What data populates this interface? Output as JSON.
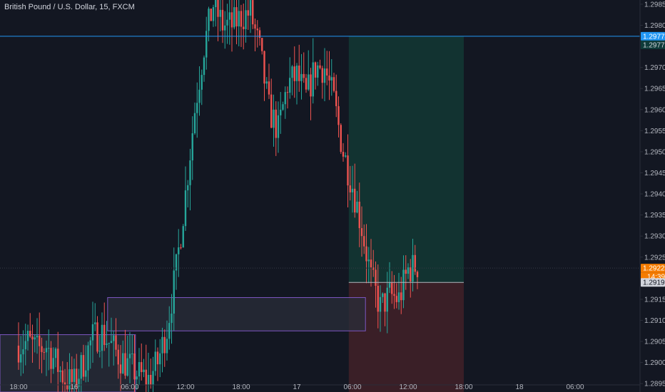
{
  "header": {
    "title": "British Pound / U.S. Dollar, 15, FXCM"
  },
  "colors": {
    "background": "#131722",
    "axis_text": "#b2b5be",
    "grid_border": "#2a2e39",
    "up_candle": "#26a69a",
    "down_candle": "#ef5350",
    "zone_fill": "#2a2d3a",
    "zone_stroke": "#7e57c2",
    "target_zone": "#123331",
    "stop_zone": "#3a1f27",
    "hline": "#2196f3",
    "current_price": "#f57c00",
    "entry_price": "#b2b5be"
  },
  "chart_data": {
    "type": "candlestick",
    "title": "British Pound / U.S. Dollar, 15, FXCM",
    "ylim": [
      1.2893,
      1.2986
    ],
    "y_ticks": [
      "1.29850",
      "1.29800",
      "1.29700",
      "1.29650",
      "1.29600",
      "1.29550",
      "1.29500",
      "1.29450",
      "1.29400",
      "1.29350",
      "1.29300",
      "1.29250",
      "1.29150",
      "1.29100",
      "1.29050",
      "1.29000",
      "1.28950"
    ],
    "x_ticks": [
      "18:00",
      "16",
      "06:00",
      "12:00",
      "18:00",
      "17",
      "06:00",
      "12:00",
      "18:00",
      "18",
      "06:00"
    ],
    "x_tick_positions": [
      0,
      6,
      12,
      18,
      24,
      30,
      36,
      42,
      48,
      54,
      60
    ],
    "xlim": [
      -2,
      67
    ],
    "series_path": [
      [
        0,
        1.2904
      ],
      [
        1,
        1.2905
      ],
      [
        2,
        1.2903
      ],
      [
        3,
        1.2904
      ],
      [
        4,
        1.29
      ],
      [
        5,
        1.2896
      ],
      [
        6,
        1.2895
      ],
      [
        7,
        1.29
      ],
      [
        8,
        1.2906
      ],
      [
        9,
        1.2907
      ],
      [
        10,
        1.2904
      ],
      [
        11,
        1.2901
      ],
      [
        12,
        1.2899
      ],
      [
        13,
        1.2897
      ],
      [
        14,
        1.2896
      ],
      [
        15,
        1.29
      ],
      [
        16,
        1.2908
      ],
      [
        17,
        1.2922
      ],
      [
        18,
        1.294
      ],
      [
        19,
        1.296
      ],
      [
        20,
        1.2975
      ],
      [
        21,
        1.2985
      ],
      [
        22,
        1.298
      ],
      [
        23,
        1.298
      ],
      [
        24,
        1.2982
      ],
      [
        25,
        1.2983
      ],
      [
        26,
        1.2974
      ],
      [
        27,
        1.296
      ],
      [
        28,
        1.2955
      ],
      [
        29,
        1.2966
      ],
      [
        30,
        1.2968
      ],
      [
        31,
        1.2963
      ],
      [
        32,
        1.297
      ],
      [
        33,
        1.297
      ],
      [
        34,
        1.2962
      ],
      [
        35,
        1.295
      ],
      [
        36,
        1.2942
      ],
      [
        37,
        1.2932
      ],
      [
        38,
        1.292
      ],
      [
        39,
        1.2913
      ],
      [
        40,
        1.2916
      ],
      [
        41,
        1.2915
      ],
      [
        42,
        1.2922
      ],
      [
        43,
        1.2923
      ]
    ],
    "horizontal_line": {
      "price": 1.29774,
      "label": "1.29774"
    },
    "stop_label": "1.29773",
    "current_price": {
      "price": 1.29224,
      "label": "1.29224",
      "countdown": "14:39"
    },
    "entry_price": {
      "price": 1.2919,
      "label": "1.29190"
    },
    "demand_zones": [
      {
        "from_x": -2,
        "to_x": 12.6,
        "top": 1.29066,
        "bottom": 1.2893
      },
      {
        "from_x": 9.6,
        "to_x": 37.4,
        "top": 1.29154,
        "bottom": 1.29075
      }
    ],
    "position": {
      "from_x": 35.6,
      "to_x": 48,
      "target": 1.29774,
      "entry": 1.2919,
      "stop": 1.2893
    }
  }
}
